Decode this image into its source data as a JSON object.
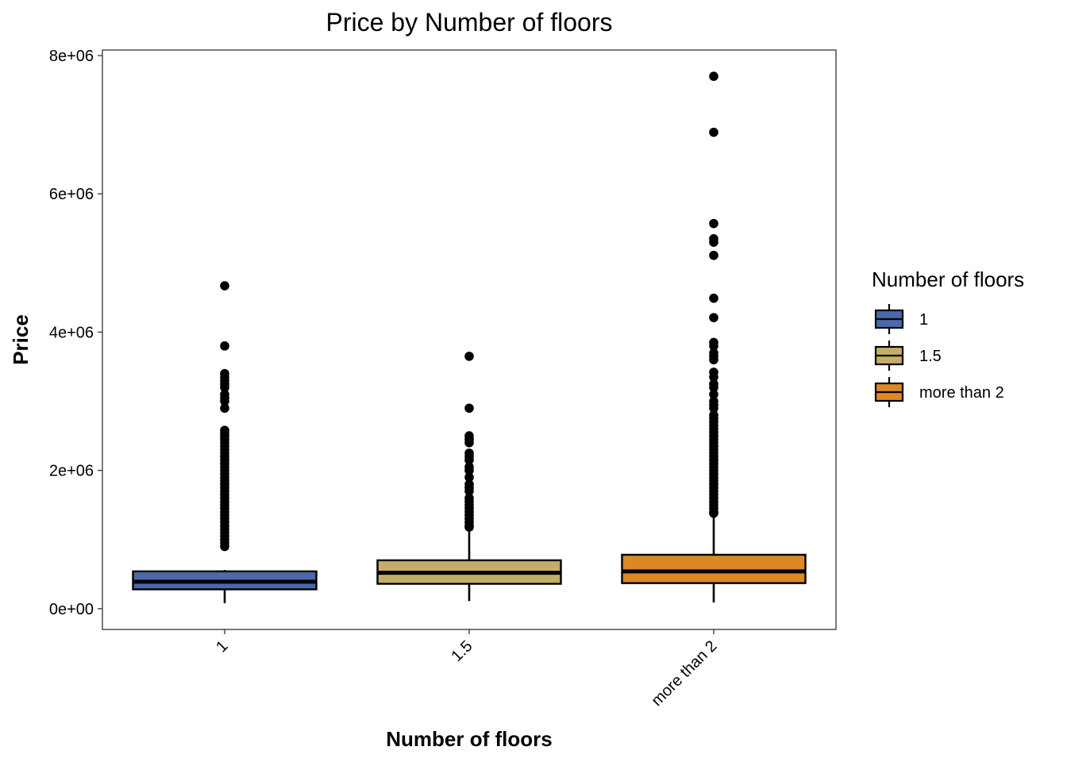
{
  "chart_data": {
    "type": "box",
    "title": "Price by Number of floors",
    "xlabel": "Number of floors",
    "ylabel": "Price",
    "ylim": [
      -300000,
      8080000
    ],
    "yticks": [
      0,
      2000000,
      4000000,
      6000000,
      8000000
    ],
    "ytick_labels": [
      "0e+00",
      "2e+06",
      "4e+06",
      "6e+06",
      "8e+06"
    ],
    "grid": false,
    "legend": {
      "title": "Number of floors",
      "position": "right"
    },
    "categories": [
      "1",
      "1.5",
      "more than 2"
    ],
    "series": [
      {
        "name": "1",
        "color": "#4C68A8",
        "whisker_low": 80000,
        "q1": 280000,
        "median": 390000,
        "q3": 540000,
        "whisker_high": 560000,
        "outliers": [
          4670000,
          3800000,
          3400000,
          3350000,
          3300000,
          3250000,
          3200000,
          3100000,
          3050000,
          3000000,
          2900000,
          2580000,
          2540000,
          2500000,
          2450000,
          2400000,
          2350000,
          2300000,
          2250000,
          2200000,
          2150000,
          2100000,
          2050000,
          2000000,
          1950000,
          1900000,
          1850000,
          1800000,
          1750000,
          1700000,
          1650000,
          1600000,
          1550000,
          1500000,
          1450000,
          1400000,
          1350000,
          1300000,
          1250000,
          1200000,
          1150000,
          1100000,
          1050000,
          1000000,
          950000,
          900000
        ]
      },
      {
        "name": "1.5",
        "color": "#C4AD6A",
        "whisker_low": 110000,
        "q1": 360000,
        "median": 520000,
        "q3": 700000,
        "whisker_high": 1150000,
        "outliers": [
          3650000,
          2900000,
          2500000,
          2450000,
          2400000,
          2250000,
          2200000,
          2150000,
          2050000,
          2000000,
          1900000,
          1800000,
          1750000,
          1700000,
          1600000,
          1550000,
          1500000,
          1450000,
          1400000,
          1350000,
          1300000,
          1250000,
          1200000,
          1180000
        ]
      },
      {
        "name": "more than 2",
        "color": "#DB8827",
        "whisker_low": 90000,
        "q1": 370000,
        "median": 540000,
        "q3": 780000,
        "whisker_high": 1360000,
        "outliers": [
          7700000,
          6890000,
          5570000,
          5350000,
          5300000,
          5110000,
          4490000,
          4210000,
          3850000,
          3800000,
          3700000,
          3650000,
          3600000,
          3420000,
          3350000,
          3250000,
          3200000,
          3100000,
          3000000,
          2950000,
          2900000,
          2800000,
          2750000,
          2700000,
          2650000,
          2600000,
          2550000,
          2500000,
          2450000,
          2400000,
          2350000,
          2300000,
          2250000,
          2200000,
          2150000,
          2100000,
          2050000,
          2000000,
          1950000,
          1900000,
          1850000,
          1800000,
          1750000,
          1700000,
          1650000,
          1600000,
          1550000,
          1500000,
          1450000,
          1400000,
          1380000
        ]
      }
    ]
  }
}
